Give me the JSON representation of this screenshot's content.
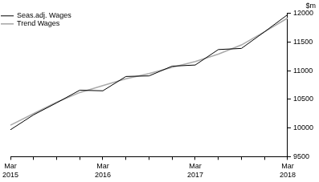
{
  "chart_data": {
    "type": "line",
    "y_label": "$m",
    "categories": [
      "Mar 2015",
      null,
      null,
      null,
      "Mar 2016",
      null,
      null,
      null,
      "Mar 2017",
      null,
      null,
      null,
      "Mar 2018"
    ],
    "series": [
      {
        "name": "Seas.adj. Wages",
        "color": "#000000",
        "values": [
          9970,
          10230,
          10440,
          10660,
          10650,
          10900,
          10910,
          11080,
          11100,
          11370,
          11390,
          11680,
          11980
        ]
      },
      {
        "name": "Trend Wages",
        "color": "#aaaaaa",
        "values": [
          10050,
          10250,
          10450,
          10620,
          10740,
          10860,
          10950,
          11060,
          11160,
          11290,
          11450,
          11680,
          11920
        ]
      }
    ],
    "ylim": [
      9500,
      12000
    ],
    "yticks": [
      9500,
      10000,
      10500,
      11000,
      11500,
      12000
    ],
    "grid": false,
    "legend": "upper left"
  }
}
